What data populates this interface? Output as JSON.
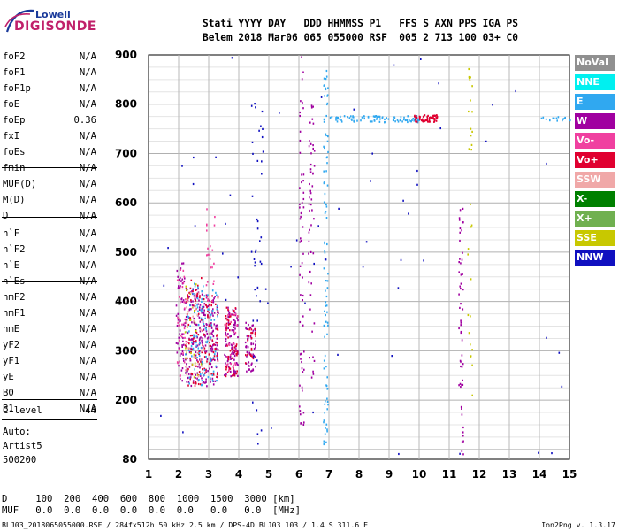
{
  "logo": {
    "line1": "Lowell",
    "line2": "DIGISONDE"
  },
  "header": {
    "row1": "Stati YYYY DAY   DDD HHMMSS P1   FFS S AXN PPS IGA PS",
    "row2": "Belem 2018 Mar06 065 055000 RSF  005 2 713 100 03+ C0"
  },
  "params": [
    {
      "label": "foF2",
      "value": "N/A"
    },
    {
      "label": "foF1",
      "value": "N/A"
    },
    {
      "label": "foF1p",
      "value": "N/A"
    },
    {
      "label": "foE",
      "value": "N/A"
    },
    {
      "label": "foEp",
      "value": "0.36"
    },
    {
      "label": "fxI",
      "value": "N/A"
    },
    {
      "label": "foEs",
      "value": "N/A"
    },
    {
      "label": "fmin",
      "value": "N/A"
    },
    {
      "label": "MUF(D)",
      "value": "N/A"
    },
    {
      "label": "M(D)",
      "value": "N/A"
    },
    {
      "label": "D",
      "value": "N/A"
    },
    {
      "label": "h`F",
      "value": "N/A"
    },
    {
      "label": "h`F2",
      "value": "N/A"
    },
    {
      "label": "h`E",
      "value": "N/A"
    },
    {
      "label": "h`Es",
      "value": "N/A"
    },
    {
      "label": "hmF2",
      "value": "N/A"
    },
    {
      "label": "hmF1",
      "value": "N/A"
    },
    {
      "label": "hmE",
      "value": "N/A"
    },
    {
      "label": "yF2",
      "value": "N/A"
    },
    {
      "label": "yF1",
      "value": "N/A"
    },
    {
      "label": "yE",
      "value": "N/A"
    },
    {
      "label": "B0",
      "value": "N/A"
    },
    {
      "label": "B1",
      "value": "N/A"
    },
    {
      "label": "C-level",
      "value": "44"
    }
  ],
  "auto": {
    "line1": "Auto:",
    "line2": "Artist5",
    "line3": "500200"
  },
  "dmuf": {
    "drow": "D     100  200  400  600  800  1000  1500  3000 [km]",
    "mrow": "MUF   0.0  0.0  0.0  0.0  0.0  0.0   0.0   0.0  [MHz]"
  },
  "footer": "BLJ03_2018065055000.RSF / 284fx512h 50 kHz 2.5 km / DPS-4D BLJ03 103 / 1.4 S 311.6 E",
  "version": "Ion2Png v. 1.3.17",
  "legend": [
    {
      "label": "NoVal",
      "color": "#909090"
    },
    {
      "label": "NNE",
      "color": "#00f0f0"
    },
    {
      "label": "E",
      "color": "#30a8f0"
    },
    {
      "label": "W",
      "color": "#a000a0"
    },
    {
      "label": "Vo-",
      "color": "#f040a0"
    },
    {
      "label": "Vo+",
      "color": "#e00030"
    },
    {
      "label": "SSW",
      "color": "#f0a8a8"
    },
    {
      "label": "X-",
      "color": "#008000"
    },
    {
      "label": "X+",
      "color": "#70b050"
    },
    {
      "label": "SSE",
      "color": "#c8c800"
    },
    {
      "label": "NNW",
      "color": "#1010c0"
    }
  ],
  "chart_data": {
    "type": "scatter",
    "x_range": [
      1,
      15
    ],
    "y_range": [
      80,
      900
    ],
    "x_ticks": [
      1,
      2,
      3,
      4,
      5,
      6,
      7,
      8,
      9,
      10,
      11,
      12,
      13,
      14,
      15
    ],
    "y_ticks": [
      80,
      200,
      300,
      400,
      500,
      600,
      700,
      800,
      900
    ],
    "grid": true,
    "bands": [
      {
        "x": [
          1.9,
          2.2
        ],
        "y": [
          240,
          480
        ],
        "color": "#a000a0",
        "n": 60
      },
      {
        "x": [
          1.9,
          2.3
        ],
        "y": [
          250,
          470
        ],
        "color": "#f040a0",
        "n": 40
      },
      {
        "x": [
          2.2,
          2.8
        ],
        "y": [
          230,
          430
        ],
        "color": "#a000a0",
        "n": 120
      },
      {
        "x": [
          2.2,
          2.8
        ],
        "y": [
          230,
          450
        ],
        "color": "#e00030",
        "n": 70
      },
      {
        "x": [
          2.2,
          2.8
        ],
        "y": [
          230,
          440
        ],
        "color": "#30a8f0",
        "n": 60
      },
      {
        "x": [
          2.2,
          2.8
        ],
        "y": [
          240,
          450
        ],
        "color": "#c8c800",
        "n": 25
      },
      {
        "x": [
          2.2,
          2.8
        ],
        "y": [
          250,
          440
        ],
        "color": "#f0a8a8",
        "n": 30
      },
      {
        "x": [
          2.8,
          3.3
        ],
        "y": [
          230,
          420
        ],
        "color": "#a000a0",
        "n": 110
      },
      {
        "x": [
          2.8,
          3.3
        ],
        "y": [
          240,
          420
        ],
        "color": "#e00030",
        "n": 60
      },
      {
        "x": [
          2.8,
          3.3
        ],
        "y": [
          240,
          430
        ],
        "color": "#30a8f0",
        "n": 40
      },
      {
        "x": [
          2.9,
          3.2
        ],
        "y": [
          400,
          600
        ],
        "color": "#f040a0",
        "n": 25
      },
      {
        "x": [
          3.5,
          3.95
        ],
        "y": [
          250,
          390
        ],
        "color": "#a000a0",
        "n": 110
      },
      {
        "x": [
          3.5,
          3.95
        ],
        "y": [
          250,
          390
        ],
        "color": "#e00030",
        "n": 50
      },
      {
        "x": [
          3.5,
          3.95
        ],
        "y": [
          260,
          380
        ],
        "color": "#f040a0",
        "n": 30
      },
      {
        "x": [
          4.2,
          4.55
        ],
        "y": [
          260,
          360
        ],
        "color": "#a000a0",
        "n": 60
      },
      {
        "x": [
          4.2,
          4.55
        ],
        "y": [
          270,
          350
        ],
        "color": "#e00030",
        "n": 20
      },
      {
        "x": [
          4.4,
          4.8
        ],
        "y": [
          100,
          900
        ],
        "color": "#1010c0",
        "n": 40
      },
      {
        "x": [
          6.0,
          6.15
        ],
        "y": [
          80,
          900
        ],
        "color": "#a000a0",
        "n": 60
      },
      {
        "x": [
          6.3,
          6.5
        ],
        "y": [
          240,
          800
        ],
        "color": "#a000a0",
        "n": 50
      },
      {
        "x": [
          6.8,
          6.95
        ],
        "y": [
          110,
          870
        ],
        "color": "#30a8f0",
        "n": 90
      },
      {
        "x": [
          7.0,
          10.0
        ],
        "y": [
          765,
          778
        ],
        "color": "#30a8f0",
        "n": 90
      },
      {
        "x": [
          9.8,
          10.6
        ],
        "y": [
          765,
          780
        ],
        "color": "#e00030",
        "n": 60
      },
      {
        "x": [
          11.3,
          11.45
        ],
        "y": [
          90,
          610
        ],
        "color": "#a000a0",
        "n": 55
      },
      {
        "x": [
          11.6,
          11.75
        ],
        "y": [
          200,
          880
        ],
        "color": "#c8c800",
        "n": 30
      },
      {
        "x": [
          13.8,
          15.0
        ],
        "y": [
          768,
          776
        ],
        "color": "#30a8f0",
        "n": 14
      },
      {
        "x": [
          1.2,
          15.0
        ],
        "y": [
          90,
          900
        ],
        "color": "#1010c0",
        "n": 60
      }
    ]
  }
}
